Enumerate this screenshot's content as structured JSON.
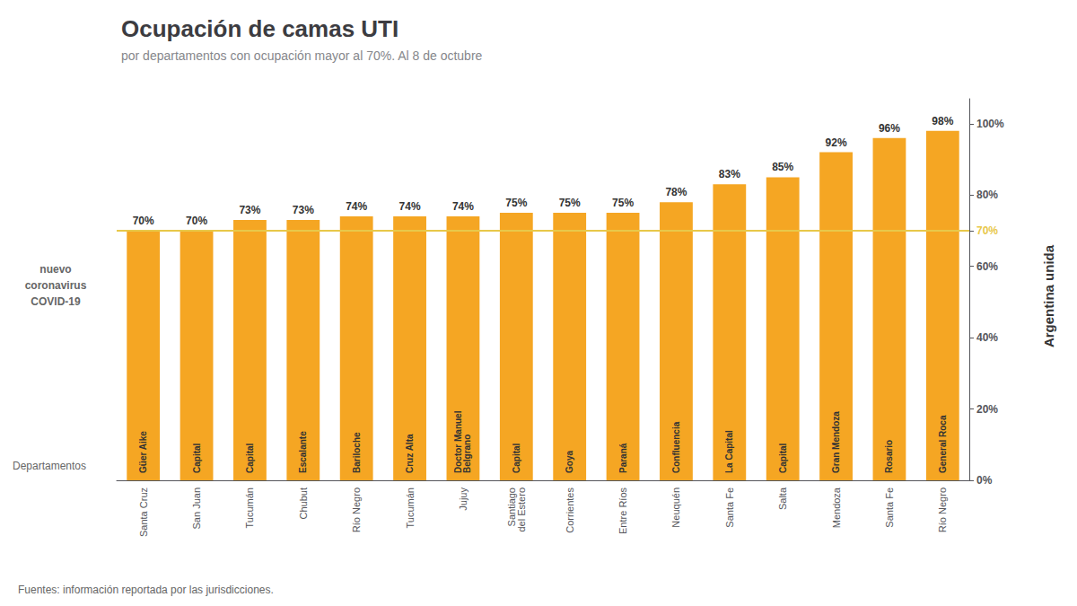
{
  "chart_data": {
    "type": "bar",
    "title": "Ocupación de camas UTI",
    "subtitle": "por departamentos con ocupación mayor al 70%. Al 8 de octubre",
    "categories": [
      "Santa Cruz",
      "San Juan",
      "Tucumán",
      "Chubut",
      "Río Negro",
      "Tucumán",
      "Jujuy",
      "Santiago\ndel Estero",
      "Corrientes",
      "Entre Ríos",
      "Neuquén",
      "Santa Fe",
      "Salta",
      "Mendoza",
      "Santa Fe",
      "Río Negro"
    ],
    "values": [
      70,
      70,
      73,
      73,
      74,
      74,
      74,
      75,
      75,
      75,
      78,
      83,
      85,
      92,
      96,
      98
    ],
    "value_labels": [
      "70%",
      "70%",
      "73%",
      "73%",
      "74%",
      "74%",
      "74%",
      "75%",
      "75%",
      "75%",
      "78%",
      "83%",
      "85%",
      "92%",
      "96%",
      "98%"
    ],
    "inner_labels": [
      "Güer Aike",
      "Capital",
      "Capital",
      "Escalante",
      "Bariloche",
      "Cruz Alta",
      "Doctor Manuel\nBelgrano",
      "Capital",
      "Goya",
      "Paraná",
      "Confluencia",
      "La Capital",
      "Capital",
      "Gran Mendoza",
      "Rosario",
      "General Roca"
    ],
    "color": "#F5A623",
    "data_labels": true,
    "grid": false,
    "ylim": [
      0,
      107
    ],
    "yticks": [
      {
        "value": 0,
        "label": "0%"
      },
      {
        "value": 20,
        "label": "20%"
      },
      {
        "value": 40,
        "label": "40%"
      },
      {
        "value": 60,
        "label": "60%"
      },
      {
        "value": 70,
        "label": "70%"
      },
      {
        "value": 80,
        "label": "80%"
      },
      {
        "value": 100,
        "label": "100%"
      }
    ],
    "reference_line": {
      "value": 70,
      "color": "#E8C84A"
    },
    "dept_label": "Departamentos",
    "source": "Fuentes: información reportada por las jurisdicciones.",
    "icon_texts": [
      "nuevo",
      "coronavirus",
      "COVID-19"
    ],
    "logo_texts": [
      "Argentina",
      "unida"
    ]
  }
}
